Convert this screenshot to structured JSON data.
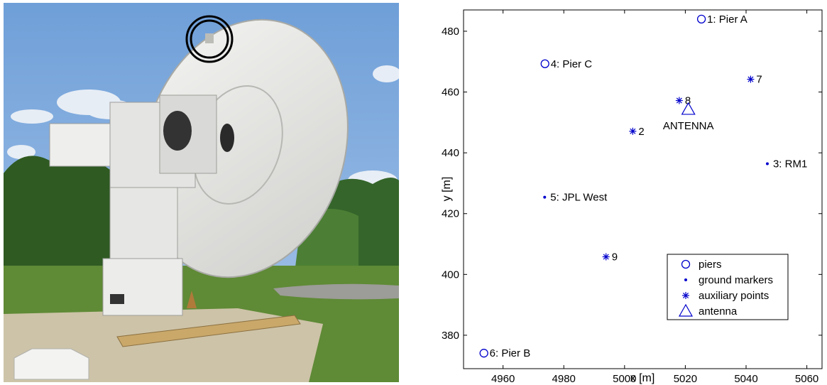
{
  "photo": {
    "subject": "white radio telescope dish antenna on pedestal, trees and blue sky behind",
    "highlight": "black double circle marking a target on the dish rim"
  },
  "chart_data": {
    "type": "scatter",
    "xlabel": "x [m]",
    "ylabel": "y [m]",
    "xlim": [
      4947,
      5065
    ],
    "ylim": [
      369,
      487
    ],
    "xticks": [
      4960,
      4980,
      5000,
      5020,
      5040,
      5060
    ],
    "yticks": [
      380,
      400,
      420,
      440,
      460,
      480
    ],
    "grid": false,
    "legend_position": "bottom-right",
    "marker_color": "#0000cc",
    "series": [
      {
        "name": "piers",
        "marker": "circle",
        "points": [
          {
            "x": 5025.3,
            "y": 484.0,
            "label": "1: Pier A"
          },
          {
            "x": 4973.8,
            "y": 469.3,
            "label": "4: Pier C"
          },
          {
            "x": 4953.7,
            "y": 374.1,
            "label": "6: Pier B"
          }
        ]
      },
      {
        "name": "ground markers",
        "marker": "dot",
        "points": [
          {
            "x": 5047.0,
            "y": 436.4,
            "label": "3: RM1"
          },
          {
            "x": 4973.7,
            "y": 425.4,
            "label": "5: JPL West"
          }
        ]
      },
      {
        "name": "auxiliary points",
        "marker": "star",
        "points": [
          {
            "x": 5002.7,
            "y": 447.1,
            "label": "2"
          },
          {
            "x": 5041.5,
            "y": 464.2,
            "label": "7"
          },
          {
            "x": 5018.0,
            "y": 457.2,
            "label": "8"
          },
          {
            "x": 4993.9,
            "y": 405.8,
            "label": "9"
          }
        ]
      },
      {
        "name": "antenna",
        "marker": "triangle",
        "points": [
          {
            "x": 5021.0,
            "y": 454.3,
            "label": "ANTENNA"
          }
        ]
      }
    ]
  }
}
